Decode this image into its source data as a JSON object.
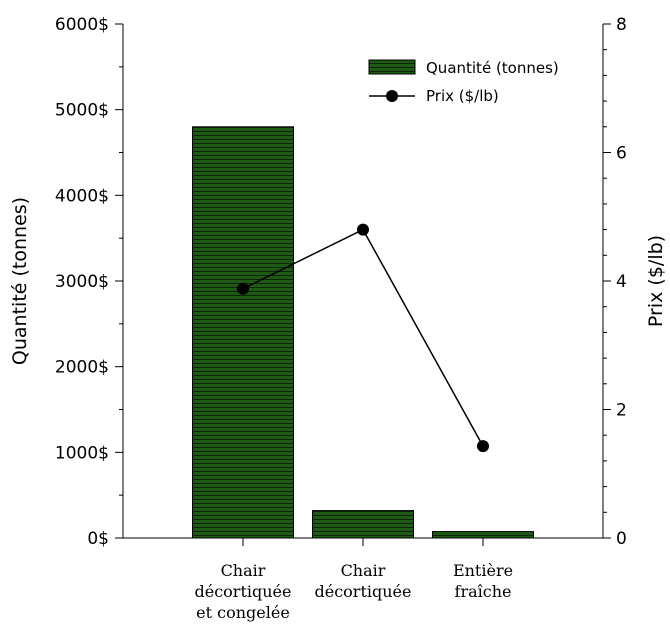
{
  "chart_data": {
    "type": "bar",
    "categories": [
      [
        "Chair",
        "décortiquée",
        "et congelée"
      ],
      [
        "Chair",
        "décortiquée"
      ],
      [
        "Entière",
        "fraîche"
      ]
    ],
    "series": [
      {
        "name": "Quantité (tonnes)",
        "kind": "bar",
        "axis": "left",
        "color": "#1e5a14",
        "values": [
          4800,
          320,
          75
        ]
      },
      {
        "name": "Prix ($/lb)",
        "kind": "line",
        "axis": "right",
        "color": "#000000",
        "values": [
          3.88,
          4.8,
          1.43
        ]
      }
    ],
    "ylabel": "Quantité (tonnes)",
    "y2label": "Prix ($/lb)",
    "ylim": [
      0,
      6000
    ],
    "y2lim": [
      0,
      8
    ],
    "yticks": [
      "0$",
      "1000$",
      "2000$",
      "3000$",
      "4000$",
      "5000$",
      "6000$"
    ],
    "y2ticks": [
      "0",
      "2",
      "4",
      "6",
      "8"
    ],
    "legend_position": "top-right",
    "grid": false
  }
}
